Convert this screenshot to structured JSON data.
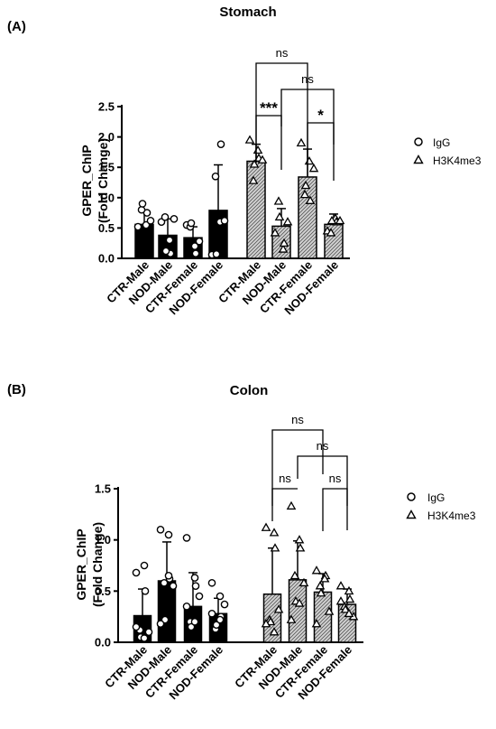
{
  "charts": [
    {
      "panel": "(A)",
      "title": "Stomach",
      "ylabel": [
        "GPER_ChIP",
        "(Fold Change)"
      ],
      "yticks": [
        "0.0",
        "0.5",
        "1.0",
        "1.5",
        "2.0",
        "2.5"
      ],
      "legend": [
        "IgG",
        "H3K4me3"
      ],
      "significance": [
        {
          "a": 4,
          "b": 5,
          "label": "***"
        },
        {
          "a": 6,
          "b": 7,
          "label": "*"
        },
        {
          "a": 5,
          "b": 7,
          "label": "ns"
        },
        {
          "a": 4,
          "b": 6,
          "label": "ns"
        }
      ]
    },
    {
      "panel": "(B)",
      "title": "Colon",
      "ylabel": [
        "GPER_ChIP",
        "(Fold Change)"
      ],
      "yticks": [
        "0.0",
        "0.5",
        "1.0",
        "1.5"
      ],
      "legend": [
        "IgG",
        "H3K4me3"
      ],
      "significance": [
        {
          "a": 4,
          "b": 5,
          "label": "ns"
        },
        {
          "a": 6,
          "b": 7,
          "label": "ns"
        },
        {
          "a": 5,
          "b": 7,
          "label": "ns"
        },
        {
          "a": 4,
          "b": 6,
          "label": "ns"
        }
      ]
    }
  ],
  "chart_data": [
    {
      "type": "bar",
      "title": "Stomach",
      "ylabel": "GPER_ChIP (Fold Change)",
      "ylim": [
        0,
        2.5
      ],
      "categories": [
        "CTR-Male",
        "NOD-Male",
        "CTR-Female",
        "NOD-Female",
        "CTR-Male",
        "NOD-Male",
        "CTR-Female",
        "NOD-Female"
      ],
      "series": [
        {
          "name": "IgG",
          "values": [
            0.56,
            0.38,
            0.34,
            0.79,
            null,
            null,
            null,
            null
          ],
          "error": [
            0.2,
            0.27,
            0.18,
            0.75,
            null,
            null,
            null,
            null
          ],
          "points": [
            [
              0.52,
              0.55,
              0.75,
              0.8,
              0.9,
              0.62
            ],
            [
              0.6,
              0.3,
              0.08,
              0.68,
              0.12,
              0.65
            ],
            [
              0.55,
              0.2,
              0.08,
              0.52,
              0.58,
              0.28
            ],
            [
              0.06,
              0.6,
              1.88,
              1.35,
              0.07,
              0.62
            ]
          ]
        },
        {
          "name": "H3K4me3",
          "values": [
            null,
            null,
            null,
            null,
            1.6,
            0.53,
            1.34,
            0.56
          ],
          "error": [
            null,
            null,
            null,
            null,
            0.28,
            0.29,
            0.46,
            0.17
          ],
          "points": [
            [
              1.95,
              1.78,
              1.65,
              1.28,
              1.55,
              1.62
            ],
            [
              0.42,
              0.15,
              0.25,
              0.94,
              0.68,
              0.6
            ],
            [
              1.9,
              1.6,
              0.95,
              1.05,
              1.2,
              1.48
            ],
            [
              0.45,
              0.66,
              0.6,
              0.42,
              0.62,
              0.62
            ]
          ]
        }
      ]
    },
    {
      "type": "bar",
      "title": "Colon",
      "ylabel": "GPER_ChIP (Fold Change)",
      "ylim": [
        0,
        1.5
      ],
      "categories": [
        "CTR-Male",
        "NOD-Male",
        "CTR-Female",
        "NOD-Female",
        "CTR-Male",
        "NOD-Male",
        "CTR-Female",
        "NOD-Female"
      ],
      "series": [
        {
          "name": "IgG",
          "values": [
            0.26,
            0.6,
            0.35,
            0.28,
            null,
            null,
            null,
            null
          ],
          "error": [
            0.26,
            0.38,
            0.33,
            0.15,
            null,
            null,
            null,
            null
          ],
          "points": [
            [
              0.68,
              0.75,
              0.5,
              0.12,
              0.05,
              0.1,
              0.15,
              0.04
            ],
            [
              1.1,
              1.05,
              0.62,
              0.58,
              0.22,
              0.55,
              0.18,
              0.65
            ],
            [
              1.02,
              0.63,
              0.55,
              0.2,
              0.15,
              0.45,
              0.35,
              0.2
            ],
            [
              0.58,
              0.45,
              0.25,
              0.13,
              0.17,
              0.37,
              0.28,
              0.22
            ]
          ]
        },
        {
          "name": "H3K4me3",
          "values": [
            null,
            null,
            null,
            null,
            0.47,
            0.61,
            0.49,
            0.37
          ],
          "error": [
            null,
            null,
            null,
            null,
            0.45,
            0.38,
            0.18,
            0.15
          ],
          "points": [
            [
              1.12,
              1.07,
              0.92,
              0.22,
              0.2,
              0.32,
              0.18,
              0.1
            ],
            [
              1.33,
              1.0,
              0.92,
              0.65,
              0.4,
              0.58,
              0.22,
              0.38
            ],
            [
              0.7,
              0.62,
              0.65,
              0.55,
              0.48,
              0.3,
              0.18,
              0.62
            ],
            [
              0.55,
              0.5,
              0.42,
              0.35,
              0.32,
              0.25,
              0.4,
              0.28
            ]
          ]
        }
      ]
    }
  ]
}
